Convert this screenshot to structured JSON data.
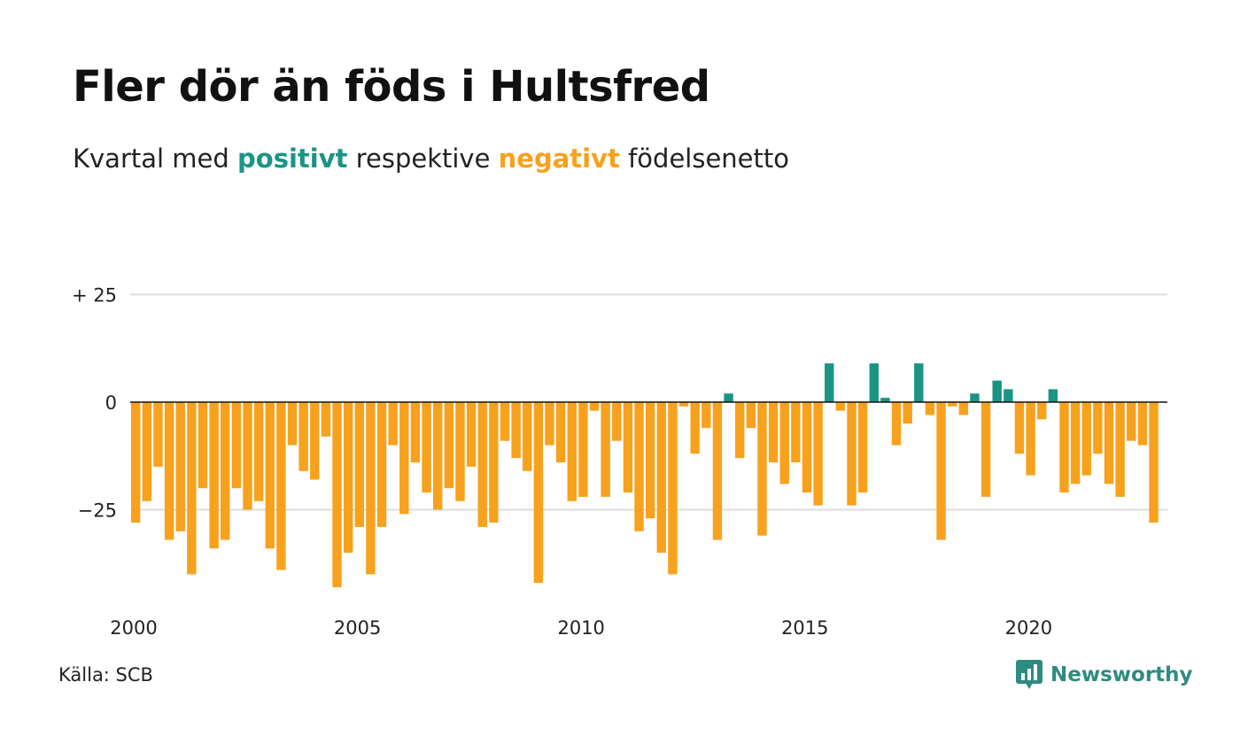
{
  "title": "Fler dör än föds i Hultsfred",
  "subtitle": {
    "prefix": "Kvartal med ",
    "positive": "positivt",
    "middle": " respektive ",
    "negative": "negativt",
    "suffix": " födelsenetto"
  },
  "colors": {
    "positive": "#1a9485",
    "negative": "#f7a11d",
    "grid": "#dddddd",
    "baseline": "#111111"
  },
  "source": "Källa: SCB",
  "brand": {
    "name": "Newsworthy",
    "icon": "newsworthy-logo-icon"
  },
  "chart_data": {
    "type": "bar",
    "x_start": 2000,
    "x_step": 0.25,
    "y_ticks": [
      {
        "value": 25,
        "label": "+ 25"
      },
      {
        "value": 0,
        "label": "0"
      },
      {
        "value": -25,
        "label": "−25"
      }
    ],
    "x_ticks": [
      2000,
      2005,
      2010,
      2015,
      2020
    ],
    "ylim": [
      -44,
      26
    ],
    "grid": true,
    "values": [
      -28,
      -23,
      -15,
      -32,
      -30,
      -40,
      -20,
      -34,
      -32,
      -20,
      -25,
      -23,
      -34,
      -39,
      -10,
      -16,
      -18,
      -8,
      -43,
      -35,
      -29,
      -40,
      -29,
      -10,
      -26,
      -14,
      -21,
      -25,
      -20,
      -23,
      -15,
      -29,
      -28,
      -9,
      -13,
      -16,
      -42,
      -10,
      -14,
      -23,
      -22,
      -2,
      -22,
      -9,
      -21,
      -30,
      -27,
      -35,
      -40,
      -1,
      -12,
      -6,
      -32,
      2,
      -13,
      -6,
      -31,
      -14,
      -19,
      -14,
      -21,
      -24,
      9,
      -2,
      -24,
      -21,
      9,
      1,
      -10,
      -5,
      9,
      -3,
      -32,
      -1,
      -3,
      2,
      -22,
      5,
      3,
      -12,
      -17,
      -4,
      3,
      -21,
      -19,
      -17,
      -12,
      -19,
      -22,
      -9,
      -10,
      -28
    ]
  }
}
